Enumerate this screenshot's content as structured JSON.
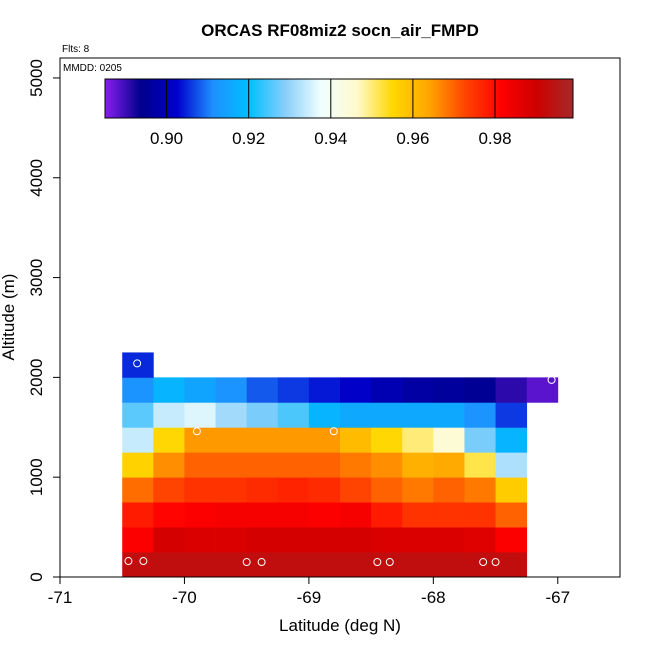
{
  "chart_data": {
    "type": "heatmap",
    "title": "ORCAS RF08miz2 socn_air_FMPD",
    "xlabel": "Latitude (deg N)",
    "ylabel": "Altitude (m)",
    "xlim": [
      -71,
      -66.5
    ],
    "ylim": [
      0,
      5200
    ],
    "x_ticks": [
      -71,
      -70,
      -69,
      -68,
      -67
    ],
    "x_tick_labels": [
      "-71",
      "-70",
      "-69",
      "-68",
      "-67"
    ],
    "y_ticks": [
      0,
      1000,
      2000,
      3000,
      4000,
      5000
    ],
    "y_tick_labels": [
      "0",
      "1000",
      "2000",
      "3000",
      "4000",
      "5000"
    ],
    "annotation_flts": "Flts: 8",
    "annotation_mmdd": "MMDD: 0205",
    "colorbar": {
      "min": 0.885,
      "max": 0.999,
      "ticks": [
        0.9,
        0.92,
        0.94,
        0.96,
        0.98
      ],
      "tick_labels": [
        "0.90",
        "0.92",
        "0.94",
        "0.96",
        "0.98"
      ],
      "colors": [
        "#8a1ef0",
        "#00008b",
        "#0000cd",
        "#1e90ff",
        "#00bfff",
        "#87cefa",
        "#f0ffff",
        "#fffacd",
        "#ffd700",
        "#ffa500",
        "#ff4500",
        "#ff0000",
        "#cd0000",
        "#a52a2a"
      ]
    },
    "cell_lat_width": 0.25,
    "cell_alt_height": 250,
    "cells": [
      {
        "lat": -70.5,
        "alt": 0,
        "value": 0.993
      },
      {
        "lat": -70.25,
        "alt": 0,
        "value": 0.993
      },
      {
        "lat": -70.0,
        "alt": 0,
        "value": 0.993
      },
      {
        "lat": -69.75,
        "alt": 0,
        "value": 0.993
      },
      {
        "lat": -69.5,
        "alt": 0,
        "value": 0.993
      },
      {
        "lat": -69.25,
        "alt": 0,
        "value": 0.993
      },
      {
        "lat": -69.0,
        "alt": 0,
        "value": 0.993
      },
      {
        "lat": -68.75,
        "alt": 0,
        "value": 0.993
      },
      {
        "lat": -68.5,
        "alt": 0,
        "value": 0.993
      },
      {
        "lat": -68.25,
        "alt": 0,
        "value": 0.993
      },
      {
        "lat": -68.0,
        "alt": 0,
        "value": 0.993
      },
      {
        "lat": -67.75,
        "alt": 0,
        "value": 0.993
      },
      {
        "lat": -67.5,
        "alt": 0,
        "value": 0.993
      },
      {
        "lat": -70.5,
        "alt": 250,
        "value": 0.982
      },
      {
        "lat": -70.25,
        "alt": 250,
        "value": 0.989
      },
      {
        "lat": -70.0,
        "alt": 250,
        "value": 0.988
      },
      {
        "lat": -69.75,
        "alt": 250,
        "value": 0.988
      },
      {
        "lat": -69.5,
        "alt": 250,
        "value": 0.989
      },
      {
        "lat": -69.25,
        "alt": 250,
        "value": 0.989
      },
      {
        "lat": -69.0,
        "alt": 250,
        "value": 0.989
      },
      {
        "lat": -68.75,
        "alt": 250,
        "value": 0.989
      },
      {
        "lat": -68.5,
        "alt": 250,
        "value": 0.988
      },
      {
        "lat": -68.25,
        "alt": 250,
        "value": 0.988
      },
      {
        "lat": -68.0,
        "alt": 250,
        "value": 0.988
      },
      {
        "lat": -67.75,
        "alt": 250,
        "value": 0.987
      },
      {
        "lat": -67.5,
        "alt": 250,
        "value": 0.982
      },
      {
        "lat": -70.5,
        "alt": 500,
        "value": 0.978
      },
      {
        "lat": -70.25,
        "alt": 500,
        "value": 0.981
      },
      {
        "lat": -70.0,
        "alt": 500,
        "value": 0.982
      },
      {
        "lat": -69.75,
        "alt": 500,
        "value": 0.983
      },
      {
        "lat": -69.5,
        "alt": 500,
        "value": 0.983
      },
      {
        "lat": -69.25,
        "alt": 500,
        "value": 0.983
      },
      {
        "lat": -69.0,
        "alt": 500,
        "value": 0.982
      },
      {
        "lat": -68.75,
        "alt": 500,
        "value": 0.983
      },
      {
        "lat": -68.5,
        "alt": 500,
        "value": 0.978
      },
      {
        "lat": -68.25,
        "alt": 500,
        "value": 0.975
      },
      {
        "lat": -68.0,
        "alt": 500,
        "value": 0.975
      },
      {
        "lat": -67.75,
        "alt": 500,
        "value": 0.975
      },
      {
        "lat": -67.5,
        "alt": 500,
        "value": 0.97
      },
      {
        "lat": -70.5,
        "alt": 750,
        "value": 0.969
      },
      {
        "lat": -70.25,
        "alt": 750,
        "value": 0.973
      },
      {
        "lat": -70.0,
        "alt": 750,
        "value": 0.975
      },
      {
        "lat": -69.75,
        "alt": 750,
        "value": 0.975
      },
      {
        "lat": -69.5,
        "alt": 750,
        "value": 0.976
      },
      {
        "lat": -69.25,
        "alt": 750,
        "value": 0.977
      },
      {
        "lat": -69.0,
        "alt": 750,
        "value": 0.976
      },
      {
        "lat": -68.75,
        "alt": 750,
        "value": 0.973
      },
      {
        "lat": -68.5,
        "alt": 750,
        "value": 0.97
      },
      {
        "lat": -68.25,
        "alt": 750,
        "value": 0.968
      },
      {
        "lat": -68.0,
        "alt": 750,
        "value": 0.97
      },
      {
        "lat": -67.75,
        "alt": 750,
        "value": 0.968
      },
      {
        "lat": -67.5,
        "alt": 750,
        "value": 0.957
      },
      {
        "lat": -70.5,
        "alt": 1000,
        "value": 0.956
      },
      {
        "lat": -70.25,
        "alt": 1000,
        "value": 0.966
      },
      {
        "lat": -70.0,
        "alt": 1000,
        "value": 0.97
      },
      {
        "lat": -69.75,
        "alt": 1000,
        "value": 0.97
      },
      {
        "lat": -69.5,
        "alt": 1000,
        "value": 0.97
      },
      {
        "lat": -69.25,
        "alt": 1000,
        "value": 0.97
      },
      {
        "lat": -69.0,
        "alt": 1000,
        "value": 0.97
      },
      {
        "lat": -68.75,
        "alt": 1000,
        "value": 0.968
      },
      {
        "lat": -68.5,
        "alt": 1000,
        "value": 0.966
      },
      {
        "lat": -68.25,
        "alt": 1000,
        "value": 0.962
      },
      {
        "lat": -68.0,
        "alt": 1000,
        "value": 0.963
      },
      {
        "lat": -67.75,
        "alt": 1000,
        "value": 0.952
      },
      {
        "lat": -67.5,
        "alt": 1000,
        "value": 0.932
      },
      {
        "lat": -70.5,
        "alt": 1250,
        "value": 0.934
      },
      {
        "lat": -70.25,
        "alt": 1250,
        "value": 0.955
      },
      {
        "lat": -70.0,
        "alt": 1250,
        "value": 0.965
      },
      {
        "lat": -69.75,
        "alt": 1250,
        "value": 0.965
      },
      {
        "lat": -69.5,
        "alt": 1250,
        "value": 0.965
      },
      {
        "lat": -69.25,
        "alt": 1250,
        "value": 0.965
      },
      {
        "lat": -69.0,
        "alt": 1250,
        "value": 0.965
      },
      {
        "lat": -68.75,
        "alt": 1250,
        "value": 0.96
      },
      {
        "lat": -68.5,
        "alt": 1250,
        "value": 0.955
      },
      {
        "lat": -68.25,
        "alt": 1250,
        "value": 0.95
      },
      {
        "lat": -68.0,
        "alt": 1250,
        "value": 0.945
      },
      {
        "lat": -67.75,
        "alt": 1250,
        "value": 0.928
      },
      {
        "lat": -67.5,
        "alt": 1250,
        "value": 0.918
      },
      {
        "lat": -70.5,
        "alt": 1500,
        "value": 0.926
      },
      {
        "lat": -70.25,
        "alt": 1500,
        "value": 0.934
      },
      {
        "lat": -70.0,
        "alt": 1500,
        "value": 0.936
      },
      {
        "lat": -69.75,
        "alt": 1500,
        "value": 0.931
      },
      {
        "lat": -69.5,
        "alt": 1500,
        "value": 0.928
      },
      {
        "lat": -69.25,
        "alt": 1500,
        "value": 0.925
      },
      {
        "lat": -69.0,
        "alt": 1500,
        "value": 0.918
      },
      {
        "lat": -68.75,
        "alt": 1500,
        "value": 0.916
      },
      {
        "lat": -68.5,
        "alt": 1500,
        "value": 0.916
      },
      {
        "lat": -68.25,
        "alt": 1500,
        "value": 0.916
      },
      {
        "lat": -68.0,
        "alt": 1500,
        "value": 0.916
      },
      {
        "lat": -67.75,
        "alt": 1500,
        "value": 0.912
      },
      {
        "lat": -67.5,
        "alt": 1500,
        "value": 0.906
      },
      {
        "lat": -70.5,
        "alt": 1750,
        "value": 0.912
      },
      {
        "lat": -70.25,
        "alt": 1750,
        "value": 0.918
      },
      {
        "lat": -70.0,
        "alt": 1750,
        "value": 0.915
      },
      {
        "lat": -69.75,
        "alt": 1750,
        "value": 0.912
      },
      {
        "lat": -69.5,
        "alt": 1750,
        "value": 0.908
      },
      {
        "lat": -69.25,
        "alt": 1750,
        "value": 0.906
      },
      {
        "lat": -69.0,
        "alt": 1750,
        "value": 0.904
      },
      {
        "lat": -68.75,
        "alt": 1750,
        "value": 0.902
      },
      {
        "lat": -68.5,
        "alt": 1750,
        "value": 0.899
      },
      {
        "lat": -68.25,
        "alt": 1750,
        "value": 0.897
      },
      {
        "lat": -68.0,
        "alt": 1750,
        "value": 0.896
      },
      {
        "lat": -67.75,
        "alt": 1750,
        "value": 0.895
      },
      {
        "lat": -67.5,
        "alt": 1750,
        "value": 0.891
      },
      {
        "lat": -67.25,
        "alt": 1750,
        "value": 0.888
      },
      {
        "lat": -70.5,
        "alt": 2000,
        "value": 0.905
      }
    ],
    "points": [
      {
        "lat": -70.45,
        "alt": 160
      },
      {
        "lat": -70.33,
        "alt": 160
      },
      {
        "lat": -69.5,
        "alt": 150
      },
      {
        "lat": -69.38,
        "alt": 150
      },
      {
        "lat": -68.45,
        "alt": 150
      },
      {
        "lat": -68.35,
        "alt": 150
      },
      {
        "lat": -67.6,
        "alt": 150
      },
      {
        "lat": -67.5,
        "alt": 150
      },
      {
        "lat": -70.38,
        "alt": 2140
      },
      {
        "lat": -69.9,
        "alt": 1460
      },
      {
        "lat": -68.8,
        "alt": 1460
      },
      {
        "lat": -67.05,
        "alt": 1975
      }
    ]
  }
}
